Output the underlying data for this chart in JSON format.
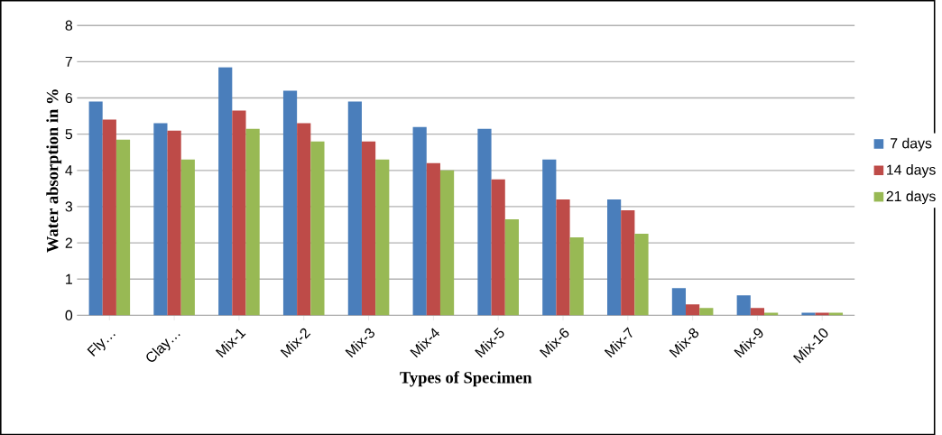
{
  "chart_data": {
    "type": "bar",
    "xlabel": "Types of Specimen",
    "ylabel": "Water absorption in %",
    "categories": [
      "Fly…",
      "Clay…",
      "Mix-1",
      "Mix-2",
      "Mix-3",
      "Mix-4",
      "Mix-5",
      "Mix-6",
      "Mix-7",
      "Mix-8",
      "Mix-9",
      "Mix-10"
    ],
    "series": [
      {
        "name": "7 days",
        "color": "#4a7ebb",
        "values": [
          5.9,
          5.3,
          6.85,
          6.2,
          5.9,
          5.2,
          5.15,
          4.3,
          3.2,
          0.75,
          0.55,
          0.07
        ]
      },
      {
        "name": "14 days",
        "color": "#be4b48",
        "values": [
          5.4,
          5.1,
          5.65,
          5.3,
          4.8,
          4.2,
          3.75,
          3.2,
          2.9,
          0.3,
          0.2,
          0.07
        ]
      },
      {
        "name": "21 days",
        "color": "#98b954",
        "values": [
          4.85,
          4.3,
          5.15,
          4.8,
          4.3,
          4.0,
          2.65,
          2.15,
          2.25,
          0.2,
          0.07,
          0.07
        ]
      }
    ],
    "ylim": [
      0,
      8
    ],
    "yticks": [
      0,
      1,
      2,
      3,
      4,
      5,
      6,
      7,
      8
    ],
    "grid": "y",
    "legend": "right"
  }
}
